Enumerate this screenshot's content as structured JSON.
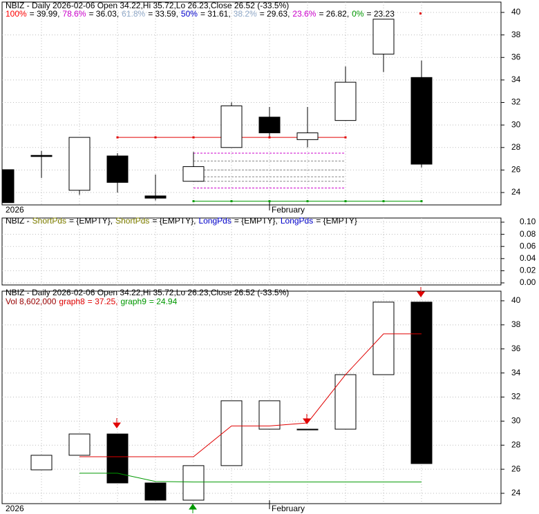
{
  "chart_data": [
    {
      "type": "candlestick",
      "title": "NBIZ - Daily 2026-02-06 Open 34.22,Hi 35.72,Lo 26.23,Close 26.52 (-33.5%)",
      "legend": [
        {
          "name": "100%",
          "color": "#ff0000",
          "text": "= 39.99,"
        },
        {
          "name": "78.6%",
          "color": "#cc00cc",
          "text": "= 36.03,"
        },
        {
          "name": "61.8%",
          "color": "#8fa8c8",
          "text": "= 33.59,"
        },
        {
          "name": "50%",
          "color": "#0000cc",
          "text": "= 31.61,"
        },
        {
          "name": "38.2%",
          "color": "#8fa8c8",
          "text": "= 29.63,"
        },
        {
          "name": "23.6%",
          "color": "#cc00cc",
          "text": "= 26.82,"
        },
        {
          "name": "0%",
          "color": "#009900",
          "text": "= 23.23"
        }
      ],
      "categories": [
        "2026",
        null,
        null,
        null,
        null,
        null,
        null,
        "February",
        null,
        null,
        null,
        null
      ],
      "open": [
        26.03,
        27.3,
        24.2,
        27.25,
        23.7,
        25.0,
        28.0,
        30.7,
        28.7,
        30.4,
        36.3,
        34.22
      ],
      "high": [
        26.03,
        27.7,
        28.9,
        27.5,
        25.6,
        27.6,
        32.0,
        31.6,
        31.6,
        35.2,
        39.4,
        35.72
      ],
      "low": [
        23.1,
        25.3,
        23.8,
        24.0,
        23.3,
        25.0,
        28.0,
        29.0,
        28.0,
        30.4,
        34.7,
        26.23
      ],
      "close": [
        23.1,
        27.2,
        28.9,
        24.9,
        23.5,
        26.3,
        31.7,
        29.3,
        29.3,
        33.8,
        39.4,
        26.52
      ],
      "up_color": "#ffffff",
      "down_color": "#000000",
      "levels": [
        {
          "value": 28.9,
          "color": "#e00000",
          "from": 3,
          "to": 9,
          "markers": true
        },
        {
          "value": 23.23,
          "color": "#009900",
          "from": 5,
          "to": 11,
          "markers": true
        },
        {
          "value": 27.5,
          "color": "#cc00cc",
          "from": 5,
          "to": 9,
          "dash": "3 2"
        },
        {
          "value": 26.8,
          "color": "#888888",
          "from": 5,
          "to": 9,
          "dash": "3 2"
        },
        {
          "value": 26.0,
          "color": "#888888",
          "from": 5,
          "to": 9,
          "dash": "3 2"
        },
        {
          "value": 25.4,
          "color": "#888888",
          "from": 5,
          "to": 9,
          "dash": "3 2"
        },
        {
          "value": 25.0,
          "color": "#888888",
          "from": 5,
          "to": 9,
          "dash": "3 2"
        },
        {
          "value": 24.4,
          "color": "#cc00cc",
          "from": 5,
          "to": 9,
          "dash": "3 2"
        }
      ],
      "ylim": [
        22.9,
        40.92
      ],
      "yticks": [
        24,
        26,
        28,
        30,
        32,
        34,
        36,
        38,
        40
      ],
      "grid": true
    },
    {
      "type": "line",
      "title": "NBIZ -",
      "legend": [
        {
          "name": "ShortPds",
          "color": "#808000",
          "text": "= {EMPTY},"
        },
        {
          "name": "ShortPds",
          "color": "#808000",
          "text": "= {EMPTY},"
        },
        {
          "name": "LongPds",
          "color": "#0000cc",
          "text": "= {EMPTY},"
        },
        {
          "name": "LongPds",
          "color": "#0000cc",
          "text": "= {EMPTY}"
        }
      ],
      "ylim": [
        -0.0034,
        0.1068
      ],
      "yticks": [
        {
          "value": 0,
          "label": "0.00"
        },
        0.02,
        0.04,
        0.06,
        0.08,
        {
          "value": 0.1,
          "label": "0.10"
        }
      ],
      "grid": true
    },
    {
      "type": "floating_bar",
      "title": "NBIZ - Daily 2026-02-06 Open 34.22,Hi 35.72,Lo 26.23,Close 26.52 (-33.5%)",
      "volume_text": "Vol 8,602,000",
      "volume_color": "#990000",
      "categories": [
        "2026",
        null,
        null,
        null,
        null,
        null,
        null,
        "February",
        null,
        null,
        null,
        null
      ],
      "open": [
        null,
        25.95,
        27.16,
        28.93,
        24.86,
        23.43,
        26.3,
        29.33,
        29.33,
        29.33,
        33.86,
        39.89
      ],
      "close": [
        null,
        27.16,
        28.93,
        24.86,
        23.43,
        26.3,
        31.69,
        31.69,
        29.27,
        33.86,
        39.89,
        26.47
      ],
      "up_color": "#ffffff",
      "down_color": "#000000",
      "series": [
        {
          "name": "graph8",
          "color": "#e00000",
          "text": "= 37.25,",
          "values": [
            null,
            null,
            27.04,
            27.04,
            27.04,
            27.04,
            29.6,
            29.6,
            29.85,
            33.86,
            37.25,
            37.25
          ]
        },
        {
          "name": "graph9",
          "color": "#009900",
          "text": "= 24.94",
          "values": [
            null,
            null,
            25.67,
            25.67,
            24.98,
            24.94,
            24.94,
            24.94,
            24.94,
            24.94,
            24.94,
            24.94
          ]
        }
      ],
      "ylim": [
        23.14,
        40.8
      ],
      "yticks": [
        24,
        26,
        28,
        30,
        32,
        34,
        36,
        38,
        40
      ],
      "grid": true
    }
  ]
}
